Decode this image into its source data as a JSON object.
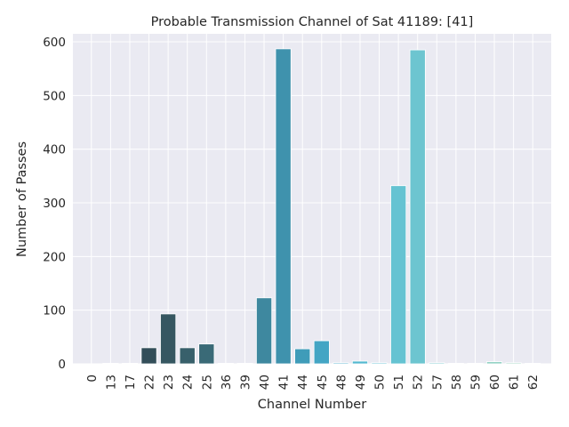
{
  "chart_data": {
    "type": "bar",
    "title": "Probable Transmission Channel of Sat 41189: [41]",
    "xlabel": "Channel Number",
    "ylabel": "Number of Passes",
    "ylim": [
      0,
      615
    ],
    "yticks": [
      0,
      100,
      200,
      300,
      400,
      500,
      600
    ],
    "grid": true,
    "categories": [
      "0",
      "13",
      "17",
      "22",
      "23",
      "24",
      "25",
      "36",
      "39",
      "40",
      "41",
      "44",
      "45",
      "48",
      "49",
      "50",
      "51",
      "52",
      "57",
      "58",
      "59",
      "60",
      "61",
      "62"
    ],
    "values": [
      0,
      1,
      1,
      30,
      93,
      30,
      37,
      1,
      1,
      123,
      587,
      28,
      43,
      2,
      5,
      2,
      332,
      585,
      2,
      1,
      1,
      4,
      2,
      1
    ],
    "colors": [
      "#2d3a45",
      "#2f3f4b",
      "#314651",
      "#334e59",
      "#365761",
      "#38606b",
      "#3a6a77",
      "#3c7483",
      "#3d7e91",
      "#3e889f",
      "#3f92ad",
      "#3f9cb9",
      "#43a5c4",
      "#4aafcb",
      "#53b8d0",
      "#5cbfd2",
      "#65c3d2",
      "#6dc5d0",
      "#75c7cd",
      "#7ecac9",
      "#88cec6",
      "#93d2c4",
      "#9ed6c3",
      "#a9dac3"
    ]
  }
}
